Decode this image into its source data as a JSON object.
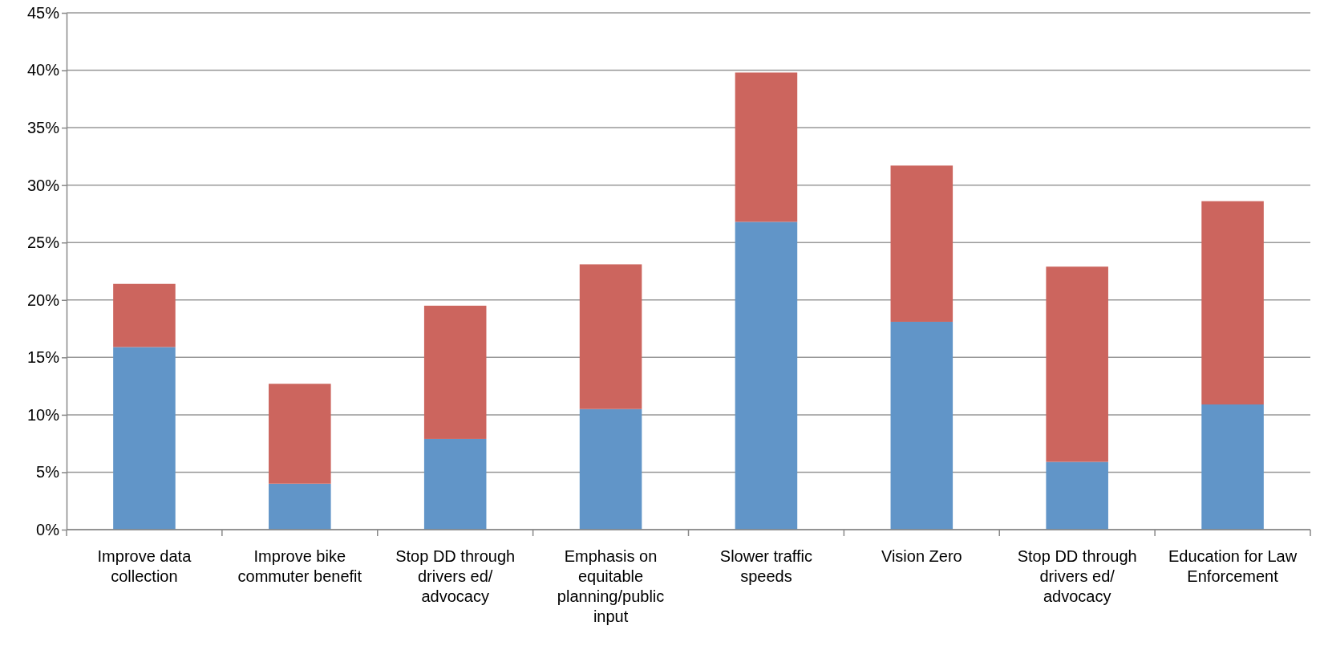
{
  "chart_data": {
    "type": "bar",
    "stacked": true,
    "categories": [
      "Improve data collection",
      "Improve bike commuter benefit",
      "Stop DD through drivers ed/ advocacy",
      "Emphasis on equitable planning/public input",
      "Slower traffic speeds",
      "Vision Zero",
      "Stop DD through drivers ed/ advocacy",
      "Education for Law Enforcement"
    ],
    "series": [
      {
        "color": "#6195c8",
        "values": [
          15.9,
          4.0,
          7.9,
          10.5,
          26.8,
          18.1,
          5.9,
          10.9
        ]
      },
      {
        "color": "#cc655e",
        "values": [
          5.5,
          8.7,
          11.6,
          12.6,
          13.0,
          13.6,
          17.0,
          17.7
        ]
      }
    ],
    "ylim": [
      0,
      45
    ],
    "yticks": [
      {
        "value": 0,
        "label": "0%"
      },
      {
        "value": 5,
        "label": "5%"
      },
      {
        "value": 10,
        "label": "10%"
      },
      {
        "value": 15,
        "label": "15%"
      },
      {
        "value": 20,
        "label": "20%"
      },
      {
        "value": 25,
        "label": "25%"
      },
      {
        "value": 30,
        "label": "30%"
      },
      {
        "value": 35,
        "label": "35%"
      },
      {
        "value": 40,
        "label": "40%"
      },
      {
        "value": 45,
        "label": "45%"
      }
    ],
    "grid": "y"
  }
}
